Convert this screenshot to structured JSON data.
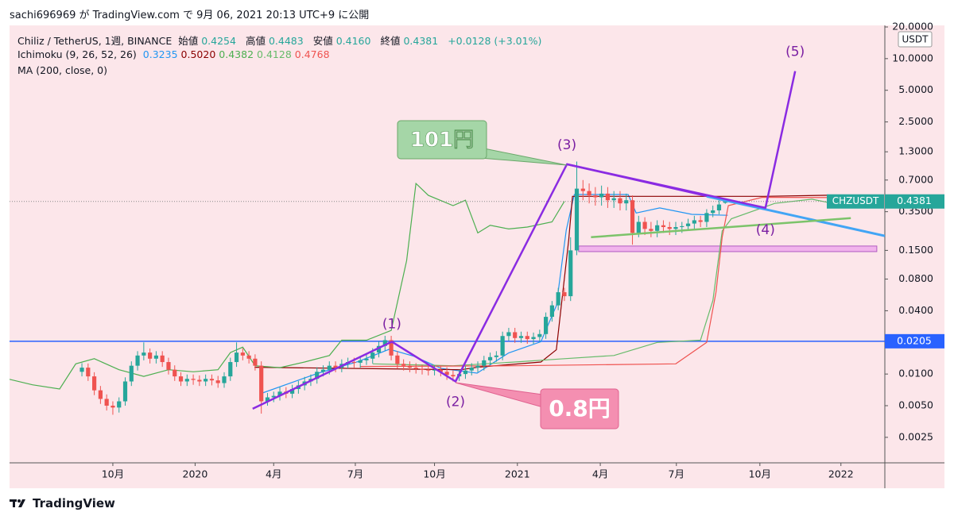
{
  "header": {
    "text": "sachi696969 が TradingView.com で 9月 06, 2021 20:13 UTC+9 に公開"
  },
  "footer": {
    "brand": "TradingView"
  },
  "chart_data": {
    "type": "candlestick",
    "log_scale": true,
    "grid": false,
    "up_color": "#26a69a",
    "down_color": "#ef5350",
    "currency": "USDT",
    "legend": {
      "symbol": "Chiliz / TetherUS, 1週, BINANCE",
      "items": [
        {
          "label": "始値",
          "value": "0.4254"
        },
        {
          "label": "高値",
          "value": "0.4483"
        },
        {
          "label": "安値",
          "value": "0.4160"
        },
        {
          "label": "終値",
          "value": "0.4381"
        }
      ],
      "change": "+0.0128 (+3.01%)",
      "indicator": "Ichimoku (9, 26, 52, 26)",
      "ma": "MA (200, close, 0)"
    },
    "ylim": [
      0.00143,
      20.7
    ],
    "yticks": [
      {
        "value": 20,
        "label": "20.0000"
      },
      {
        "value": 10,
        "label": "10.0000"
      },
      {
        "value": 5,
        "label": "5.0000"
      },
      {
        "value": 2.5,
        "label": "2.5000"
      },
      {
        "value": 1.3,
        "label": "1.3000"
      },
      {
        "value": 0.7,
        "label": "0.7000"
      },
      {
        "value": 0.35,
        "label": "0.3500"
      },
      {
        "value": 0.15,
        "label": "0.1500"
      },
      {
        "value": 0.08,
        "label": "0.0800"
      },
      {
        "value": 0.04,
        "label": "0.0400"
      },
      {
        "value": 0.01,
        "label": "0.0100"
      },
      {
        "value": 0.005,
        "label": "0.0050"
      },
      {
        "value": 0.0025,
        "label": "0.0025"
      }
    ],
    "xlim": [
      -11.7,
      129.8
    ],
    "xticks": [
      {
        "value": 5,
        "label": "10月"
      },
      {
        "value": 18.3,
        "label": "2020"
      },
      {
        "value": 31,
        "label": "4月"
      },
      {
        "value": 44.2,
        "label": "7月"
      },
      {
        "value": 57,
        "label": "10月"
      },
      {
        "value": 70.4,
        "label": "2021"
      },
      {
        "value": 83.8,
        "label": "4月"
      },
      {
        "value": 96.1,
        "label": "7月"
      },
      {
        "value": 109.6,
        "label": "10月"
      },
      {
        "value": 122.7,
        "label": "2022"
      }
    ],
    "open": [
      0.0105,
      0.0115,
      0.0095,
      0.007,
      0.0058,
      0.005,
      0.0048,
      0.0055,
      0.0085,
      0.012,
      0.015,
      0.016,
      0.014,
      0.015,
      0.013,
      0.011,
      0.0095,
      0.0085,
      0.009,
      0.0088,
      0.0085,
      0.009,
      0.0087,
      0.0082,
      0.0095,
      0.013,
      0.016,
      0.015,
      0.014,
      0.012,
      0.0055,
      0.006,
      0.0062,
      0.0068,
      0.0065,
      0.0072,
      0.0078,
      0.0085,
      0.009,
      0.0105,
      0.011,
      0.012,
      0.0115,
      0.0125,
      0.013,
      0.0128,
      0.0135,
      0.014,
      0.016,
      0.0185,
      0.021,
      0.015,
      0.0125,
      0.012,
      0.0115,
      0.0112,
      0.011,
      0.0108,
      0.011,
      0.0105,
      0.0098,
      0.0095,
      0.01,
      0.0108,
      0.0115,
      0.012,
      0.0135,
      0.0145,
      0.015,
      0.023,
      0.025,
      0.022,
      0.023,
      0.0215,
      0.0225,
      0.024,
      0.035,
      0.045,
      0.06,
      0.055,
      0.15,
      0.58,
      0.55,
      0.5,
      0.48,
      0.52,
      0.45,
      0.47,
      0.42,
      0.45,
      0.22,
      0.28,
      0.24,
      0.23,
      0.26,
      0.25,
      0.24,
      0.25,
      0.255,
      0.27,
      0.29,
      0.28,
      0.34,
      0.36,
      0.4254
    ],
    "high": [
      0.0127,
      0.0126,
      0.0104,
      0.0077,
      0.0064,
      0.0055,
      0.006,
      0.0093,
      0.0132,
      0.0165,
      0.02,
      0.0175,
      0.0165,
      0.0165,
      0.0143,
      0.0121,
      0.0104,
      0.0099,
      0.0099,
      0.0097,
      0.0099,
      0.0099,
      0.0096,
      0.0104,
      0.0143,
      0.02,
      0.0176,
      0.0165,
      0.0154,
      0.0132,
      0.0066,
      0.0068,
      0.0075,
      0.0075,
      0.0079,
      0.0086,
      0.0094,
      0.0099,
      0.0116,
      0.0121,
      0.0132,
      0.0132,
      0.0138,
      0.0143,
      0.0143,
      0.0149,
      0.0154,
      0.0176,
      0.0204,
      0.0231,
      0.0231,
      0.0165,
      0.0138,
      0.0132,
      0.0127,
      0.0123,
      0.0121,
      0.0121,
      0.0121,
      0.0116,
      0.0108,
      0.011,
      0.0119,
      0.0127,
      0.0132,
      0.0149,
      0.016,
      0.0165,
      0.0253,
      0.0275,
      0.0275,
      0.0253,
      0.0253,
      0.0248,
      0.0264,
      0.0385,
      0.0495,
      0.066,
      0.066,
      0.2,
      1.05,
      0.7,
      0.65,
      0.6,
      0.62,
      0.6,
      0.55,
      0.55,
      0.52,
      0.5,
      0.32,
      0.31,
      0.28,
      0.29,
      0.29,
      0.28,
      0.28,
      0.28,
      0.3,
      0.32,
      0.32,
      0.37,
      0.4,
      0.45,
      0.4483
    ],
    "low": [
      0.0095,
      0.0086,
      0.0063,
      0.0052,
      0.0045,
      0.0041,
      0.0043,
      0.005,
      0.0077,
      0.0108,
      0.0135,
      0.0126,
      0.0126,
      0.0117,
      0.0099,
      0.0086,
      0.0077,
      0.0077,
      0.0079,
      0.0077,
      0.0077,
      0.0078,
      0.0074,
      0.0074,
      0.0086,
      0.0117,
      0.0135,
      0.0126,
      0.0108,
      0.0042,
      0.005,
      0.0054,
      0.0056,
      0.0059,
      0.0059,
      0.0065,
      0.007,
      0.0077,
      0.0081,
      0.0095,
      0.0099,
      0.0104,
      0.0104,
      0.0113,
      0.0115,
      0.0115,
      0.0122,
      0.0126,
      0.0144,
      0.0167,
      0.0135,
      0.0113,
      0.0108,
      0.0104,
      0.0101,
      0.0099,
      0.0097,
      0.0097,
      0.0095,
      0.0088,
      0.0085,
      0.0086,
      0.009,
      0.0097,
      0.0104,
      0.0108,
      0.0122,
      0.0131,
      0.0135,
      0.0207,
      0.0198,
      0.0198,
      0.0194,
      0.0194,
      0.0203,
      0.0216,
      0.0315,
      0.0405,
      0.0495,
      0.0495,
      0.135,
      0.45,
      0.42,
      0.4,
      0.4,
      0.38,
      0.38,
      0.36,
      0.36,
      0.17,
      0.2,
      0.21,
      0.2,
      0.2,
      0.22,
      0.21,
      0.21,
      0.22,
      0.23,
      0.24,
      0.25,
      0.25,
      0.31,
      0.33,
      0.416
    ],
    "close": [
      0.0115,
      0.0095,
      0.007,
      0.0058,
      0.005,
      0.0048,
      0.0055,
      0.0085,
      0.012,
      0.015,
      0.016,
      0.014,
      0.015,
      0.013,
      0.011,
      0.0095,
      0.0085,
      0.009,
      0.0088,
      0.0085,
      0.009,
      0.0087,
      0.0082,
      0.0095,
      0.013,
      0.016,
      0.015,
      0.014,
      0.012,
      0.0055,
      0.006,
      0.0062,
      0.0068,
      0.0065,
      0.0072,
      0.0078,
      0.0085,
      0.009,
      0.0105,
      0.011,
      0.012,
      0.0115,
      0.0125,
      0.013,
      0.0128,
      0.0135,
      0.014,
      0.016,
      0.0185,
      0.021,
      0.015,
      0.0125,
      0.012,
      0.0115,
      0.0112,
      0.011,
      0.0108,
      0.011,
      0.0105,
      0.0098,
      0.0095,
      0.01,
      0.0108,
      0.0115,
      0.012,
      0.0135,
      0.0145,
      0.015,
      0.023,
      0.025,
      0.022,
      0.023,
      0.0215,
      0.0225,
      0.024,
      0.035,
      0.045,
      0.06,
      0.055,
      0.15,
      0.58,
      0.55,
      0.5,
      0.48,
      0.52,
      0.45,
      0.47,
      0.42,
      0.45,
      0.22,
      0.28,
      0.24,
      0.23,
      0.26,
      0.25,
      0.24,
      0.25,
      0.255,
      0.27,
      0.29,
      0.28,
      0.34,
      0.36,
      0.41,
      0.4381
    ],
    "price_label": {
      "symbol": "CHZUSDT",
      "color": "#26a69a"
    },
    "lines": [
      {
        "color": "#2196f3",
        "value_label": "0.3235",
        "x": [
          29.2,
          38.2,
          44.6,
          49.7,
          53.6,
          58.1,
          63.9,
          69,
          74.2,
          76.7,
          78.3,
          79.6,
          88.3,
          89.6,
          93.4,
          98.6,
          104.4
        ],
        "values": [
          0.0066,
          0.0102,
          0.0131,
          0.0172,
          0.0148,
          0.0113,
          0.0102,
          0.0159,
          0.0203,
          0.0446,
          0.235,
          0.51,
          0.51,
          0.34,
          0.38,
          0.33,
          0.3235
        ]
      },
      {
        "color": "#8b0000",
        "value_label": "0.5020",
        "x": [
          27.9,
          61.3,
          63.9,
          74.2,
          76.7,
          78.7,
          79.3,
          110.2,
          121
        ],
        "values": [
          0.0116,
          0.011,
          0.0116,
          0.013,
          0.017,
          0.19,
          0.49,
          0.49,
          0.502
        ]
      },
      {
        "color": "#4caf50",
        "value_label": "0.4382",
        "x": [
          -11.7,
          -8,
          -3.6,
          -1,
          2,
          6,
          10,
          14,
          18,
          22,
          24,
          26,
          28,
          32,
          36,
          40,
          42,
          46,
          50,
          52.5,
          54,
          56,
          60,
          62,
          64,
          66,
          69,
          72,
          76,
          78
        ],
        "values": [
          0.0089,
          0.0079,
          0.0072,
          0.0125,
          0.014,
          0.011,
          0.0095,
          0.011,
          0.0105,
          0.011,
          0.016,
          0.018,
          0.012,
          0.0115,
          0.013,
          0.015,
          0.021,
          0.021,
          0.026,
          0.12,
          0.65,
          0.5,
          0.4,
          0.45,
          0.22,
          0.26,
          0.24,
          0.25,
          0.28,
          0.4382
        ]
      },
      {
        "color": "#66bb6a",
        "value_label": "0.4128",
        "x": [
          47,
          60,
          70,
          78,
          86,
          93,
          100,
          102,
          103.5,
          105,
          112,
          118,
          122
        ],
        "values": [
          0.0125,
          0.012,
          0.013,
          0.014,
          0.015,
          0.02,
          0.021,
          0.05,
          0.23,
          0.3,
          0.42,
          0.46,
          0.4128
        ]
      },
      {
        "color": "#ef5350",
        "value_label": "0.4768",
        "x": [
          45,
          70,
          96,
          101,
          102.5,
          103.5,
          104.5,
          110,
          122
        ],
        "values": [
          0.0118,
          0.012,
          0.0125,
          0.02,
          0.06,
          0.2,
          0.4,
          0.48,
          0.4768
        ]
      }
    ],
    "drawings": {
      "wave": {
        "color": "#8a2be2",
        "x": [
          27.6,
          50.1,
          60.4,
          78.4,
          110.5,
          115.3
        ],
        "values": [
          0.00467,
          0.0203,
          0.0085,
          0.99,
          0.38,
          7.6
        ],
        "labels": [
          "(1)",
          "(2)",
          "(3)",
          "(4)",
          "(5)"
        ]
      },
      "trendlines": [
        {
          "color": "#8a2be2",
          "x": [
            78.4,
            105.5
          ],
          "values": [
            0.99,
            0.43
          ]
        },
        {
          "color": "#42a5f5",
          "x": [
            101,
            129.8
          ],
          "values": [
            0.49,
            0.206
          ]
        },
        {
          "color": "#7cc36a",
          "x": [
            82.3,
            124.3
          ],
          "values": [
            0.2,
            0.304
          ]
        }
      ],
      "zone": {
        "color": "#f1b3ec",
        "x": [
          80.3,
          128.5
        ],
        "values": [
          0.165,
          0.146
        ]
      },
      "hline": {
        "color": "#2962ff",
        "value": 0.0205
      },
      "callouts": [
        "101円",
        "0.8円"
      ]
    }
  }
}
